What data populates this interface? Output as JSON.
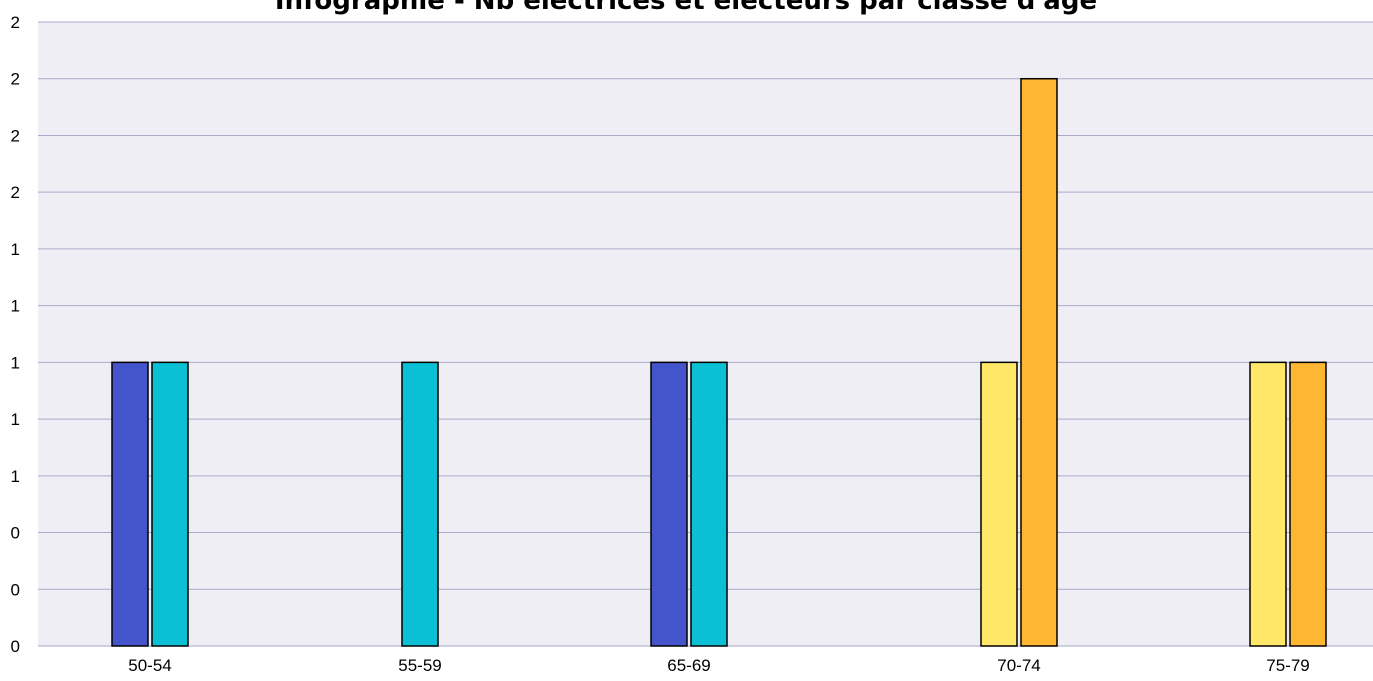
{
  "chart_data": {
    "type": "bar",
    "title": "Infographie - Nb électrices et électeurs par classe d'âge",
    "xlabel": "",
    "ylabel": "",
    "categories": [
      "50-54",
      "55-59",
      "65-69",
      "70-74",
      "75-79"
    ],
    "ylim": [
      0,
      2.2
    ],
    "y_tick_values": [
      0,
      0.2,
      0.4,
      0.6,
      0.8,
      1.0,
      1.2,
      1.4,
      1.6,
      1.8,
      2.0,
      2.2
    ],
    "y_tick_labels": [
      "0",
      "0",
      "0",
      "1",
      "1",
      "1",
      "1",
      "1",
      "2",
      "2",
      "2",
      "2"
    ],
    "grid": true,
    "legend": "none",
    "bars": [
      {
        "category": "50-54",
        "values": [
          1,
          1
        ],
        "colors": [
          "#4455cc",
          "#0bbfd4"
        ]
      },
      {
        "category": "55-59",
        "values": [
          1
        ],
        "colors": [
          "#0bbfd4"
        ]
      },
      {
        "category": "65-69",
        "values": [
          1,
          1
        ],
        "colors": [
          "#4455cc",
          "#0bbfd4"
        ]
      },
      {
        "category": "70-74",
        "values": [
          1,
          2
        ],
        "colors": [
          "#ffe868",
          "#ffb733"
        ]
      },
      {
        "category": "75-79",
        "values": [
          1,
          1
        ],
        "colors": [
          "#ffe868",
          "#ffb733"
        ]
      }
    ],
    "colors": {
      "plot_background": "#efeef4",
      "grid": "#aaaacc",
      "bar_stroke": "#000000"
    }
  }
}
